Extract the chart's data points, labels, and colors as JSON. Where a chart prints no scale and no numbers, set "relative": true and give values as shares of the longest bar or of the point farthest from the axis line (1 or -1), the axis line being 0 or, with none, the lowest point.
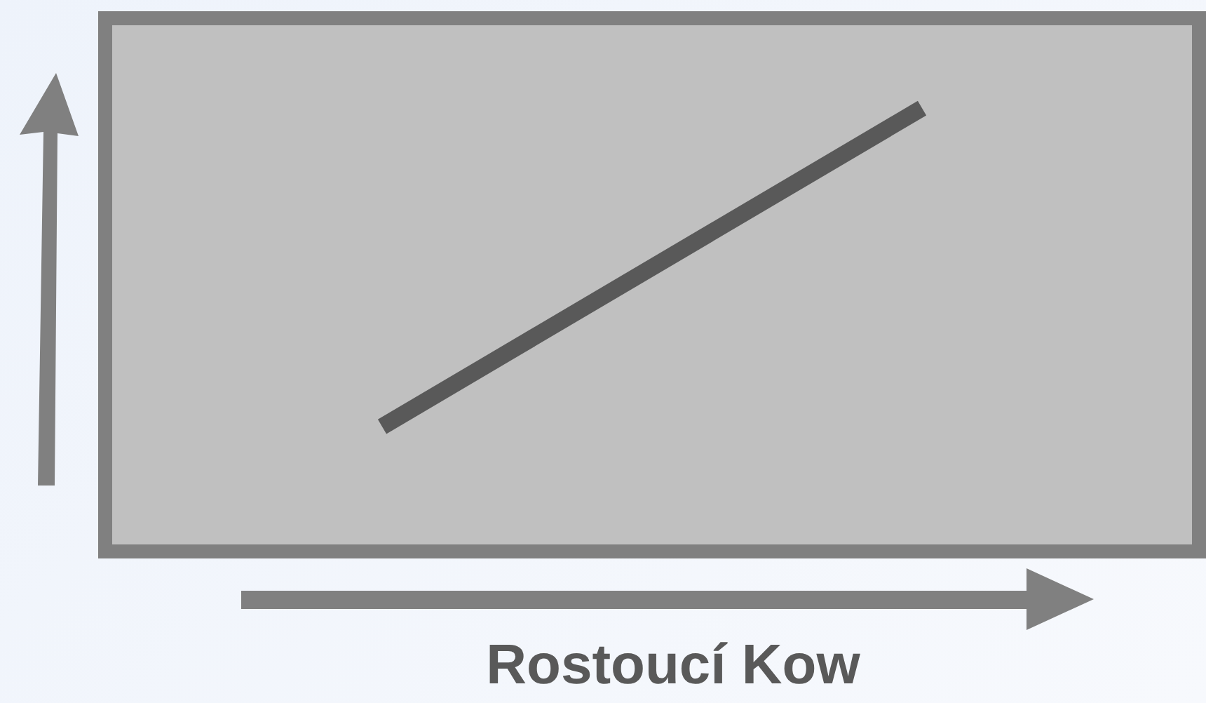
{
  "chart_data": {
    "type": "line",
    "xlabel": "Rostoucí Kow",
    "relative": true,
    "categories": [
      null,
      null
    ],
    "series": [
      {
        "color": "#595959",
        "values": [
          0.27,
          1
        ]
      }
    ],
    "marker": "none",
    "line_style": "solid",
    "legend": false
  }
}
